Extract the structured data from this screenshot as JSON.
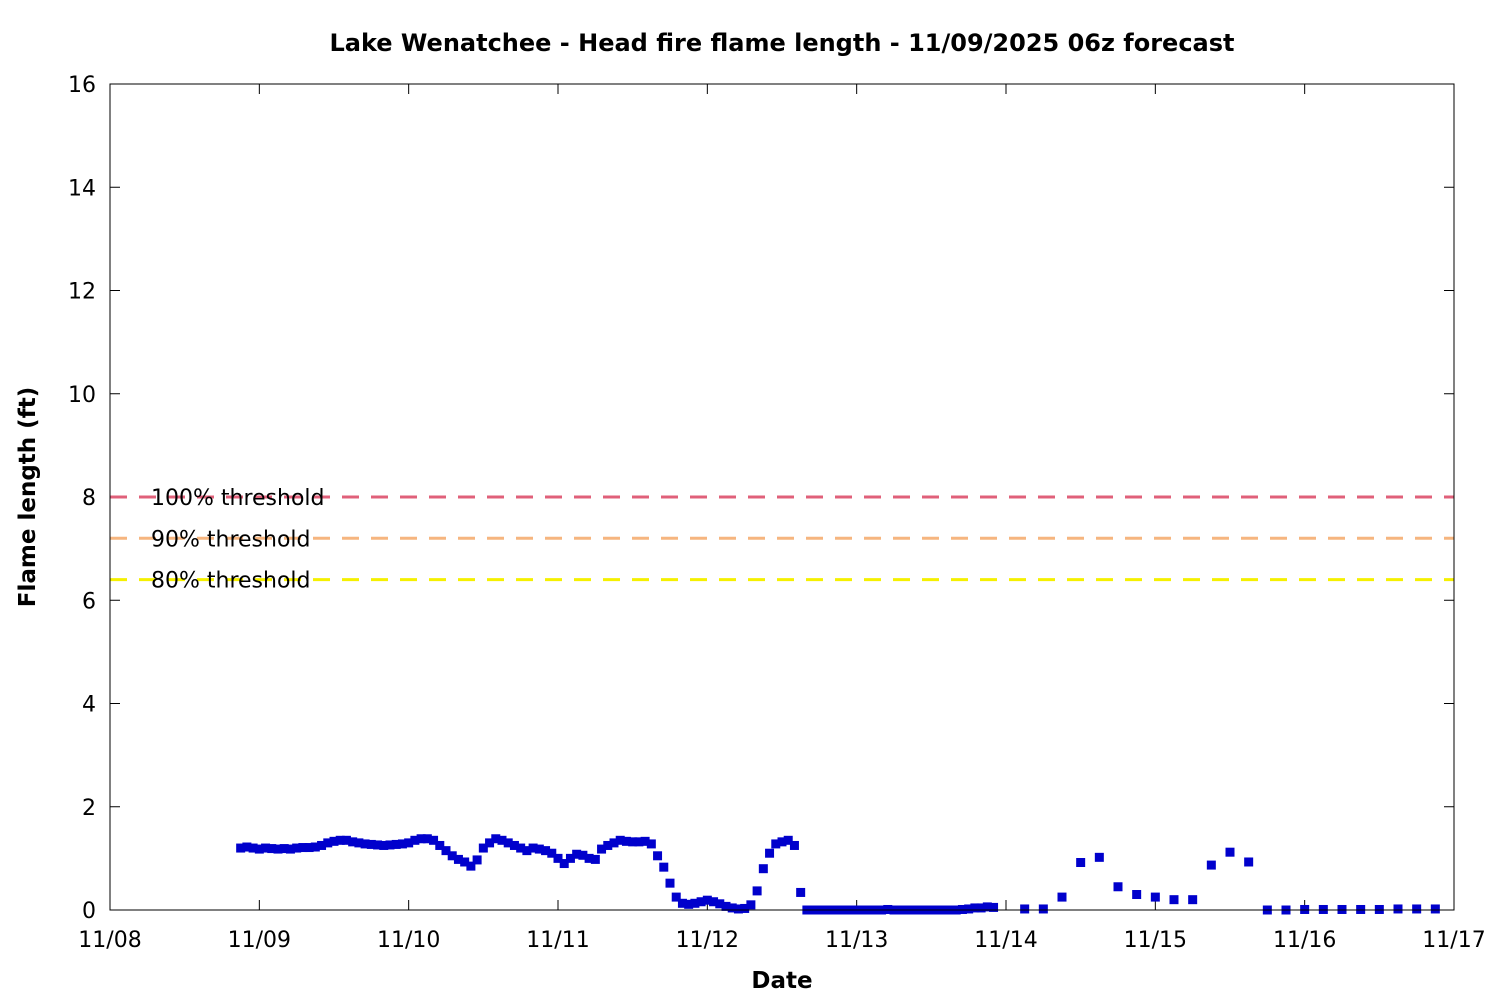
{
  "chart_data": {
    "type": "scatter",
    "title": "Lake Wenatchee - Head fire flame length - 11/09/2025 06z forecast",
    "xlabel": "Date",
    "ylabel": "Flame length (ft)",
    "x_start_date": "11/08",
    "x_tick_labels": [
      "11/08",
      "11/09",
      "11/10",
      "11/11",
      "11/12",
      "11/13",
      "11/14",
      "11/15",
      "11/16",
      "11/17"
    ],
    "xlim": [
      "11/08",
      "11/17"
    ],
    "ylim": [
      0,
      16
    ],
    "y_ticks": [
      0,
      2,
      4,
      6,
      8,
      10,
      12,
      14,
      16
    ],
    "grid": false,
    "thresholds": [
      {
        "label": "100% threshold",
        "value": 8.0,
        "color": "#e0607a"
      },
      {
        "label": "90% threshold",
        "value": 7.2,
        "color": "#f6b57f"
      },
      {
        "label": "80% threshold",
        "value": 6.4,
        "color": "#f5f000"
      }
    ],
    "series": [
      {
        "marker_color": "#0000cc",
        "x": [
          "11/08 21:00",
          "11/08 22:00",
          "11/08 23:00",
          "11/09 00:00",
          "11/09 01:00",
          "11/09 02:00",
          "11/09 03:00",
          "11/09 04:00",
          "11/09 05:00",
          "11/09 06:00",
          "11/09 07:00",
          "11/09 08:00",
          "11/09 09:00",
          "11/09 10:00",
          "11/09 11:00",
          "11/09 12:00",
          "11/09 13:00",
          "11/09 14:00",
          "11/09 15:00",
          "11/09 16:00",
          "11/09 17:00",
          "11/09 18:00",
          "11/09 19:00",
          "11/09 20:00",
          "11/09 21:00",
          "11/09 22:00",
          "11/09 23:00",
          "11/10 00:00",
          "11/10 01:00",
          "11/10 02:00",
          "11/10 03:00",
          "11/10 04:00",
          "11/10 05:00",
          "11/10 06:00",
          "11/10 07:00",
          "11/10 08:00",
          "11/10 09:00",
          "11/10 10:00",
          "11/10 11:00",
          "11/10 12:00",
          "11/10 13:00",
          "11/10 14:00",
          "11/10 15:00",
          "11/10 16:00",
          "11/10 17:00",
          "11/10 18:00",
          "11/10 19:00",
          "11/10 20:00",
          "11/10 21:00",
          "11/10 22:00",
          "11/10 23:00",
          "11/11 00:00",
          "11/11 01:00",
          "11/11 02:00",
          "11/11 03:00",
          "11/11 04:00",
          "11/11 05:00",
          "11/11 06:00",
          "11/11 07:00",
          "11/11 08:00",
          "11/11 09:00",
          "11/11 10:00",
          "11/11 11:00",
          "11/11 12:00",
          "11/11 13:00",
          "11/11 14:00",
          "11/11 15:00",
          "11/11 16:00",
          "11/11 17:00",
          "11/11 18:00",
          "11/11 19:00",
          "11/11 20:00",
          "11/11 21:00",
          "11/11 22:00",
          "11/11 23:00",
          "11/12 00:00",
          "11/12 01:00",
          "11/12 02:00",
          "11/12 03:00",
          "11/12 04:00",
          "11/12 05:00",
          "11/12 06:00",
          "11/12 07:00",
          "11/12 08:00",
          "11/12 09:00",
          "11/12 10:00",
          "11/12 11:00",
          "11/12 12:00",
          "11/12 13:00",
          "11/12 14:00",
          "11/12 15:00",
          "11/12 16:00",
          "11/12 17:00",
          "11/12 18:00",
          "11/12 19:00",
          "11/12 20:00",
          "11/12 21:00",
          "11/12 22:00",
          "11/12 23:00",
          "11/13 00:00",
          "11/13 01:00",
          "11/13 02:00",
          "11/13 03:00",
          "11/13 04:00",
          "11/13 05:00",
          "11/13 06:00",
          "11/13 07:00",
          "11/13 08:00",
          "11/13 09:00",
          "11/13 10:00",
          "11/13 11:00",
          "11/13 12:00",
          "11/13 13:00",
          "11/13 14:00",
          "11/13 15:00",
          "11/13 16:00",
          "11/13 17:00",
          "11/13 18:00",
          "11/13 19:00",
          "11/13 20:00",
          "11/13 21:00",
          "11/13 22:00",
          "11/14 03:00",
          "11/14 06:00",
          "11/14 09:00",
          "11/14 12:00",
          "11/14 15:00",
          "11/14 18:00",
          "11/14 21:00",
          "11/15 00:00",
          "11/15 03:00",
          "11/15 06:00",
          "11/15 09:00",
          "11/15 12:00",
          "11/15 15:00",
          "11/15 18:00",
          "11/15 21:00",
          "11/16 00:00",
          "11/16 03:00",
          "11/16 06:00",
          "11/16 09:00",
          "11/16 12:00",
          "11/16 15:00",
          "11/16 18:00",
          "11/16 21:00"
        ],
        "y": [
          1.2,
          1.22,
          1.2,
          1.18,
          1.2,
          1.19,
          1.18,
          1.19,
          1.18,
          1.2,
          1.21,
          1.21,
          1.22,
          1.25,
          1.3,
          1.33,
          1.35,
          1.35,
          1.32,
          1.3,
          1.28,
          1.27,
          1.26,
          1.25,
          1.26,
          1.27,
          1.28,
          1.3,
          1.35,
          1.38,
          1.38,
          1.35,
          1.25,
          1.15,
          1.05,
          0.98,
          0.93,
          0.85,
          0.97,
          1.2,
          1.3,
          1.38,
          1.35,
          1.3,
          1.25,
          1.2,
          1.15,
          1.2,
          1.18,
          1.15,
          1.1,
          1.0,
          0.9,
          1.0,
          1.08,
          1.06,
          1.0,
          0.98,
          1.18,
          1.25,
          1.3,
          1.35,
          1.33,
          1.32,
          1.32,
          1.33,
          1.28,
          1.05,
          0.83,
          0.52,
          0.25,
          0.13,
          0.11,
          0.13,
          0.16,
          0.19,
          0.16,
          0.12,
          0.07,
          0.04,
          0.02,
          0.03,
          0.1,
          0.37,
          0.8,
          1.1,
          1.28,
          1.32,
          1.35,
          1.25,
          0.34,
          0.0,
          0.0,
          0.0,
          0.0,
          0.0,
          0.0,
          0.0,
          0.0,
          0.0,
          0.0,
          0.0,
          0.0,
          0.0,
          0.01,
          0.0,
          0.0,
          0.0,
          0.0,
          0.0,
          0.0,
          0.0,
          0.0,
          0.0,
          0.0,
          0.0,
          0.01,
          0.02,
          0.04,
          0.04,
          0.06,
          0.05,
          0.02,
          0.02,
          0.25,
          0.92,
          1.02,
          0.45,
          0.3,
          0.25,
          0.2,
          0.2,
          0.87,
          1.12,
          0.93,
          0.0,
          0.0,
          0.01,
          0.01,
          0.01,
          0.01,
          0.01,
          0.02,
          0.02,
          0.02
        ]
      }
    ]
  }
}
